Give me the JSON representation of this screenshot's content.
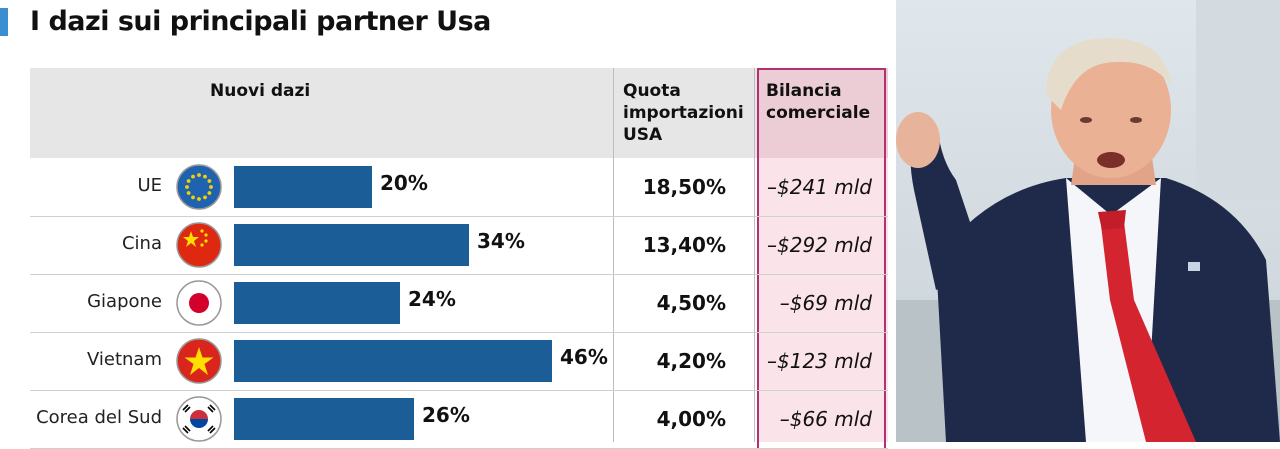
{
  "title": "I dazi sui principali partner Usa",
  "headers": {
    "dazi": "Nuovi dazi",
    "quota": [
      "Quota",
      "importazioni",
      "USA"
    ],
    "bilancia": [
      "Bilancia",
      "comerciale"
    ]
  },
  "colors": {
    "bar": "#1b5e97",
    "pink_column": "#fbe3ea",
    "pink_border": "#b5306e",
    "accent": "#3b8fd0"
  },
  "chart_data": {
    "type": "bar",
    "orientation": "horizontal",
    "categories": [
      "UE",
      "Cina",
      "Giapone",
      "Vietnam",
      "Corea del Sud"
    ],
    "values": [
      20,
      34,
      24,
      46,
      26
    ],
    "value_labels": [
      "20%",
      "34%",
      "24%",
      "46%",
      "26%"
    ],
    "flags": [
      "eu-flag-icon",
      "china-flag-icon",
      "japan-flag-icon",
      "vietnam-flag-icon",
      "south-korea-flag-icon"
    ],
    "quota_importazioni": [
      "18,50%",
      "13,40%",
      "4,50%",
      "4,20%",
      "4,00%"
    ],
    "bilancia_commerciale": [
      "–$241 mld",
      "–$292 mld",
      "–$69 mld",
      "–$123 mld",
      "–$66 mld"
    ],
    "xlim": [
      0,
      46
    ],
    "grid": false
  },
  "photo": {
    "subject": "man-in-suit-raising-fist"
  }
}
